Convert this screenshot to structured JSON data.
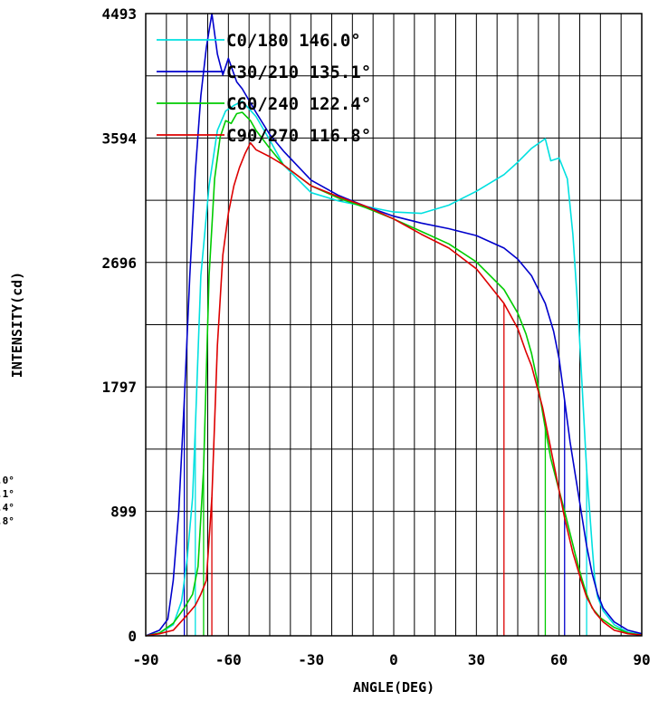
{
  "chart_data": {
    "type": "line",
    "xlabel": "ANGLE(DEG)",
    "ylabel": "INTENSITY(cd)",
    "xlim": [
      -90,
      90
    ],
    "ylim": [
      0,
      4493
    ],
    "x_ticks": [
      -90,
      -60,
      -30,
      0,
      30,
      60,
      90
    ],
    "x_tick_labels": [
      "-90",
      "-60",
      "-30",
      "0",
      "30",
      "60",
      "90"
    ],
    "y_ticks": [
      0,
      899,
      1797,
      2696,
      3594,
      4493
    ],
    "y_tick_labels": [
      "0",
      "899",
      "1797",
      "2696",
      "3594",
      "4493"
    ],
    "x_grid_step": 7.5,
    "y_grid_step": 449.3,
    "grid": true,
    "legend_position": "top",
    "side_fragments": [
      ".0°",
      ".1°",
      ".4°",
      ".8°"
    ],
    "series": [
      {
        "name": "C0/180 146.0°",
        "color": "#00e0e0",
        "x": [
          -90,
          -85,
          -80,
          -77,
          -75,
          -73,
          -72,
          -70,
          -67,
          -64,
          -61,
          -58,
          -55,
          -50,
          -45,
          -40,
          -30,
          -20,
          -10,
          0,
          10,
          20,
          30,
          40,
          45,
          50,
          55,
          57,
          60,
          63,
          65,
          67,
          70,
          72,
          73,
          74,
          76,
          80,
          85,
          90
        ],
        "y": [
          0,
          20,
          80,
          250,
          550,
          1000,
          1500,
          2600,
          3250,
          3650,
          3790,
          3830,
          3860,
          3750,
          3580,
          3400,
          3200,
          3140,
          3100,
          3060,
          3050,
          3110,
          3210,
          3330,
          3420,
          3520,
          3590,
          3430,
          3450,
          3300,
          2900,
          2300,
          1200,
          650,
          400,
          280,
          180,
          80,
          25,
          10
        ]
      },
      {
        "name": "C30/210 135.1°",
        "color": "#0000cc",
        "x": [
          -90,
          -85,
          -82,
          -80,
          -78,
          -76,
          -74,
          -72,
          -70,
          -68,
          -66,
          -64,
          -62,
          -60,
          -57,
          -55,
          -50,
          -45,
          -40,
          -30,
          -20,
          -10,
          0,
          10,
          20,
          30,
          40,
          45,
          50,
          55,
          58,
          60,
          62,
          64,
          66,
          68,
          70,
          72,
          74,
          76,
          80,
          85,
          90
        ],
        "y": [
          0,
          40,
          120,
          400,
          900,
          1700,
          2600,
          3350,
          3900,
          4250,
          4493,
          4200,
          4050,
          4170,
          4000,
          3950,
          3780,
          3620,
          3500,
          3290,
          3180,
          3100,
          3030,
          2980,
          2940,
          2890,
          2800,
          2720,
          2600,
          2400,
          2200,
          2000,
          1700,
          1400,
          1150,
          900,
          650,
          450,
          300,
          200,
          100,
          40,
          15
        ]
      },
      {
        "name": "C60/240 122.4°",
        "color": "#00cc00",
        "x": [
          -90,
          -85,
          -80,
          -76,
          -73,
          -71,
          -69,
          -67,
          -65,
          -63,
          -61,
          -59,
          -57,
          -55,
          -52,
          -50,
          -45,
          -40,
          -30,
          -20,
          -10,
          0,
          10,
          20,
          30,
          40,
          45,
          48,
          50,
          52,
          55,
          57,
          60,
          62,
          64,
          66,
          68,
          70,
          72,
          75,
          80,
          85,
          90
        ],
        "y": [
          0,
          20,
          90,
          200,
          300,
          500,
          1200,
          2600,
          3300,
          3600,
          3720,
          3700,
          3770,
          3780,
          3720,
          3650,
          3520,
          3400,
          3250,
          3160,
          3090,
          3010,
          2920,
          2830,
          2700,
          2500,
          2330,
          2180,
          2040,
          1850,
          1500,
          1280,
          1050,
          900,
          740,
          580,
          430,
          300,
          200,
          130,
          60,
          20,
          5
        ]
      },
      {
        "name": "C90/270 116.8°",
        "color": "#dd0000",
        "x": [
          -90,
          -85,
          -80,
          -75,
          -72,
          -70,
          -68,
          -66,
          -64,
          -62,
          -60,
          -58,
          -56,
          -54,
          -52,
          -50,
          -45,
          -40,
          -30,
          -20,
          -10,
          0,
          10,
          20,
          30,
          40,
          45,
          48,
          50,
          52,
          54,
          56,
          58,
          60,
          62,
          65,
          68,
          70,
          73,
          76,
          80,
          85,
          90
        ],
        "y": [
          0,
          15,
          40,
          150,
          220,
          300,
          400,
          1000,
          2100,
          2750,
          3050,
          3250,
          3380,
          3480,
          3560,
          3510,
          3460,
          3400,
          3250,
          3170,
          3100,
          3010,
          2900,
          2800,
          2650,
          2400,
          2220,
          2050,
          1950,
          1800,
          1650,
          1450,
          1250,
          1050,
          850,
          600,
          400,
          280,
          170,
          100,
          40,
          15,
          5
        ]
      }
    ]
  }
}
